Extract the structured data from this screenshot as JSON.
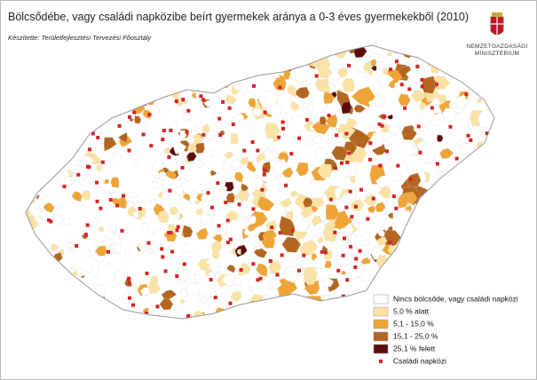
{
  "header": {
    "title": "Bölcsődébe, vagy családi napközibe beírt gyermekek aránya a 0-3 éves gyermekekből (2010)",
    "credit": "Készítette: Területfejlesztési Tervezési Főosztály",
    "ministry": [
      "NEMZETGAZDASÁGI",
      "MINISZTÉRIUM"
    ]
  },
  "legend": [
    {
      "label": "Nincs bölcsőde, vagy családi napközi",
      "color": "#ffffff"
    },
    {
      "label": "5,0 % alatt",
      "color": "#fde3a3"
    },
    {
      "label": "5,1 - 15,0 %",
      "color": "#efa535"
    },
    {
      "label": "15,1 - 25,0 %",
      "color": "#b3661f"
    },
    {
      "label": "25,1 % felett",
      "color": "#5c0c0c"
    },
    {
      "label": "Családi napközi",
      "color": "#d42222"
    }
  ]
}
